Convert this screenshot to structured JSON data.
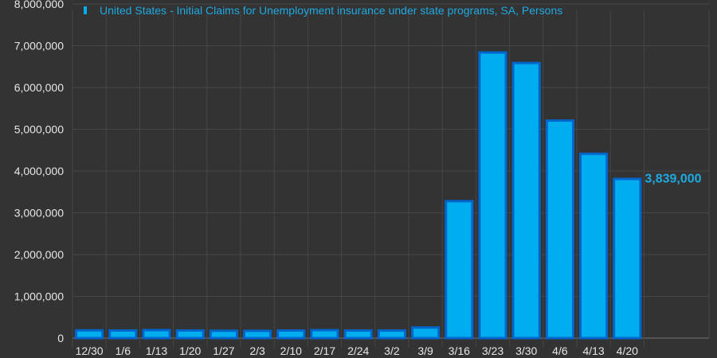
{
  "chart_data": {
    "type": "bar",
    "categories": [
      "12/30",
      "1/6",
      "1/13",
      "1/20",
      "1/27",
      "2/3",
      "2/10",
      "2/17",
      "2/24",
      "3/2",
      "3/9",
      "3/16",
      "3/23",
      "3/30",
      "4/6",
      "4/13",
      "4/20"
    ],
    "series": [
      {
        "name": "United States - Initial Claims for Unemployment insurance under state programs, SA, Persons",
        "values": [
          214000,
          212000,
          220000,
          212000,
          203000,
          202000,
          210000,
          219000,
          211000,
          211000,
          282000,
          3307000,
          6867000,
          6615000,
          5237000,
          4442000,
          3839000
        ]
      }
    ],
    "last_value_label": "3,839,000",
    "ylim": [
      0,
      8000000
    ],
    "yticks": [
      "0",
      "1,000,000",
      "2,000,000",
      "3,000,000",
      "4,000,000",
      "5,000,000",
      "6,000,000",
      "7,000,000",
      "8,000,000"
    ],
    "grid": true,
    "legend_position": "top-left",
    "colors": {
      "background": "#333333",
      "grid": "#474747",
      "bar_fill": "#00aeef",
      "bar_stroke": "#0066cc",
      "label": "#1fa9e1",
      "axis_text": "#e6e6e6"
    }
  }
}
